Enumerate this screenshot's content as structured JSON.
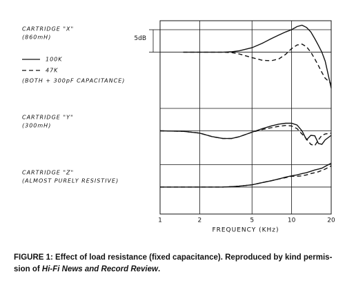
{
  "chart_data": {
    "type": "line",
    "xlabel": "FREQUENCY (KHz)",
    "xscale": "log",
    "xlim": [
      1,
      20
    ],
    "xticks": [
      1,
      2,
      5,
      10,
      20
    ],
    "ylim": [
      -36,
      7
    ],
    "ygrid": [
      5,
      0,
      -12.5,
      -17.5,
      -25,
      -30
    ],
    "scale_bar": {
      "value": 5,
      "label": "5dB"
    },
    "color": "#111111",
    "legend": [
      {
        "label": "100K",
        "dash": "solid"
      },
      {
        "label": "47K",
        "dash": "dashed"
      }
    ],
    "legend_note": "(BOTH + 300pF CAPACITANCE)",
    "x": [
      1,
      1.5,
      2,
      2.5,
      3,
      3.5,
      4,
      5,
      6,
      7,
      8,
      9,
      10,
      11,
      12,
      13,
      14,
      15,
      16,
      17,
      18,
      20
    ],
    "panels": [
      {
        "label": [
          "CARTRIDGE \"X\"",
          "(860mH)"
        ],
        "series": [
          {
            "values": [
              null,
              0,
              0,
              0,
              0,
              0.1,
              0.3,
              1,
              2,
              3,
              3.8,
              4.5,
              5,
              5.7,
              6,
              5.5,
              4.5,
              3,
              1.5,
              0,
              -2,
              -8
            ]
          },
          {
            "values": [
              null,
              0,
              0,
              0,
              0,
              -0.1,
              -0.4,
              -1.2,
              -1.8,
              -1.9,
              -1.5,
              -0.5,
              0.8,
              1.6,
              1.8,
              1.2,
              0,
              -1.5,
              -3,
              -4.5,
              -5.8,
              -7
            ]
          }
        ]
      },
      {
        "label": [
          "CARTRIDGE \"Y\"",
          "(300mH)"
        ],
        "series": [
          {
            "values": [
              -17.5,
              -17.6,
              -18,
              -18.8,
              -19.2,
              -19.2,
              -18.8,
              -17.8,
              -17,
              -16.4,
              -16,
              -15.8,
              -15.8,
              -16.2,
              -17.5,
              -19.5,
              -18.5,
              -18.6,
              -20.3,
              -20.5,
              -19.5,
              -18.5
            ]
          },
          {
            "values": [
              -17.5,
              -17.6,
              -18,
              -18.8,
              -19.2,
              -19.2,
              -18.8,
              -17.8,
              -17.2,
              -16.8,
              -16.5,
              -16.3,
              -16.4,
              -17,
              -18.2,
              -19.3,
              -20.5,
              -20.8,
              -19.5,
              -18.5,
              -18.2,
              -18
            ]
          }
        ]
      },
      {
        "label": [
          "CARTRIDGE \"Z\"",
          "(ALMOST PURELY RESISTIVE)"
        ],
        "series": [
          {
            "values": [
              -30,
              -30,
              -30,
              -30,
              -30,
              -29.9,
              -29.8,
              -29.5,
              -29,
              -28.6,
              -28.2,
              -27.8,
              -27.5,
              -27.3,
              -27,
              -26.8,
              -26.5,
              -26.2,
              -26,
              -25.8,
              -25.4,
              -24.7
            ]
          },
          {
            "values": [
              -30,
              -30,
              -30,
              -30,
              -30,
              -29.9,
              -29.8,
              -29.5,
              -29,
              -28.6,
              -28.2,
              -27.9,
              -27.6,
              -27.6,
              -27.5,
              -27.3,
              -27,
              -26.8,
              -26.6,
              -26.3,
              -26,
              -25.3
            ]
          }
        ]
      }
    ],
    "caption": {
      "line1": "FIGURE 1: Effect of load resistance (fixed capacitance). Reproduced by kind permis-",
      "line2": [
        "sion of ",
        "Hi-Fi News and Record Review",
        "."
      ]
    }
  }
}
